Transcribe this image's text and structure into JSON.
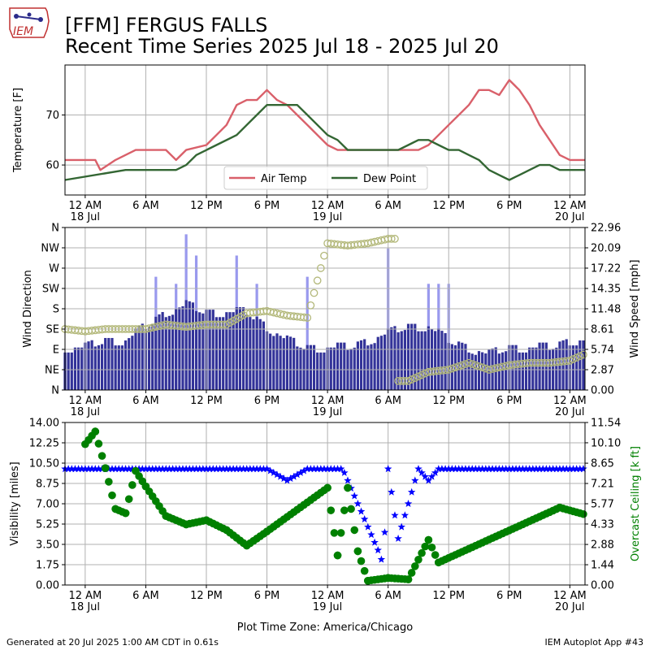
{
  "header": {
    "logo_text": "IEM",
    "title_line1": "[FFM] FERGUS FALLS",
    "title_line2": "Recent Time Series 2025 Jul 18 - 2025 Jul 20"
  },
  "footer": {
    "generated": "Generated at 20 Jul 2025 1:00 AM CDT in 0.61s",
    "app": "IEM Autoplot App #43"
  },
  "colors": {
    "air_temp": "#d9606a",
    "dew_point": "#336633",
    "wind_speed_bar": "#333399",
    "wind_gust_bar": "#9999ee",
    "wind_dir_marker": "#b3b87a",
    "visibility": "#0000ff",
    "ceiling": "#008000",
    "grid": "#b0b0b0"
  },
  "time_axis": {
    "start": "2025-07-17 22:00",
    "end": "2025-07-20 01:30",
    "ticks": [
      {
        "t": "2025-07-18 00:00",
        "label": "12 AM",
        "sub": "18 Jul"
      },
      {
        "t": "2025-07-18 06:00",
        "label": "6 AM",
        "sub": ""
      },
      {
        "t": "2025-07-18 12:00",
        "label": "12 PM",
        "sub": ""
      },
      {
        "t": "2025-07-18 18:00",
        "label": "6 PM",
        "sub": ""
      },
      {
        "t": "2025-07-19 00:00",
        "label": "12 AM",
        "sub": "19 Jul"
      },
      {
        "t": "2025-07-19 06:00",
        "label": "6 AM",
        "sub": ""
      },
      {
        "t": "2025-07-19 12:00",
        "label": "12 PM",
        "sub": ""
      },
      {
        "t": "2025-07-19 18:00",
        "label": "6 PM",
        "sub": ""
      },
      {
        "t": "2025-07-20 00:00",
        "label": "12 AM",
        "sub": "20 Jul"
      }
    ],
    "xlabel": "Plot Time Zone: America/Chicago"
  },
  "chart_data": [
    {
      "type": "line",
      "ylabel": "Temperature [F]",
      "ylim": [
        54,
        80
      ],
      "yticks": [
        60,
        70
      ],
      "legend_position": "lower-center",
      "grid": true,
      "series": [
        {
          "name": "Air Temp",
          "points": [
            [
              "2025-07-17 22:00",
              61
            ],
            [
              "2025-07-18 01:00",
              61
            ],
            [
              "2025-07-18 01:30",
              59
            ],
            [
              "2025-07-18 03:00",
              61
            ],
            [
              "2025-07-18 05:00",
              63
            ],
            [
              "2025-07-18 08:00",
              63
            ],
            [
              "2025-07-18 09:00",
              61
            ],
            [
              "2025-07-18 10:00",
              63
            ],
            [
              "2025-07-18 12:00",
              64
            ],
            [
              "2025-07-18 13:00",
              66
            ],
            [
              "2025-07-18 14:00",
              68
            ],
            [
              "2025-07-18 15:00",
              72
            ],
            [
              "2025-07-18 16:00",
              73
            ],
            [
              "2025-07-18 17:00",
              73
            ],
            [
              "2025-07-18 18:00",
              75
            ],
            [
              "2025-07-18 19:00",
              73
            ],
            [
              "2025-07-18 20:00",
              72
            ],
            [
              "2025-07-18 21:00",
              70
            ],
            [
              "2025-07-18 22:00",
              68
            ],
            [
              "2025-07-18 23:00",
              66
            ],
            [
              "2025-07-19 00:00",
              64
            ],
            [
              "2025-07-19 01:00",
              63
            ],
            [
              "2025-07-19 06:00",
              63
            ],
            [
              "2025-07-19 09:00",
              63
            ],
            [
              "2025-07-19 10:00",
              64
            ],
            [
              "2025-07-19 11:00",
              66
            ],
            [
              "2025-07-19 12:00",
              68
            ],
            [
              "2025-07-19 13:00",
              70
            ],
            [
              "2025-07-19 14:00",
              72
            ],
            [
              "2025-07-19 15:00",
              75
            ],
            [
              "2025-07-19 16:00",
              75
            ],
            [
              "2025-07-19 17:00",
              74
            ],
            [
              "2025-07-19 18:00",
              77
            ],
            [
              "2025-07-19 19:00",
              75
            ],
            [
              "2025-07-19 20:00",
              72
            ],
            [
              "2025-07-19 21:00",
              68
            ],
            [
              "2025-07-19 22:00",
              65
            ],
            [
              "2025-07-19 23:00",
              62
            ],
            [
              "2025-07-20 00:00",
              61
            ],
            [
              "2025-07-20 01:30",
              61
            ]
          ]
        },
        {
          "name": "Dew Point",
          "points": [
            [
              "2025-07-17 22:00",
              57
            ],
            [
              "2025-07-18 04:00",
              59
            ],
            [
              "2025-07-18 09:00",
              59
            ],
            [
              "2025-07-18 10:00",
              60
            ],
            [
              "2025-07-18 11:00",
              62
            ],
            [
              "2025-07-18 13:00",
              64
            ],
            [
              "2025-07-18 15:00",
              66
            ],
            [
              "2025-07-18 16:00",
              68
            ],
            [
              "2025-07-18 17:00",
              70
            ],
            [
              "2025-07-18 18:00",
              72
            ],
            [
              "2025-07-18 21:00",
              72
            ],
            [
              "2025-07-18 22:00",
              70
            ],
            [
              "2025-07-18 23:00",
              68
            ],
            [
              "2025-07-19 00:00",
              66
            ],
            [
              "2025-07-19 01:00",
              65
            ],
            [
              "2025-07-19 02:00",
              63
            ],
            [
              "2025-07-19 06:00",
              63
            ],
            [
              "2025-07-19 07:00",
              63
            ],
            [
              "2025-07-19 08:00",
              64
            ],
            [
              "2025-07-19 09:00",
              65
            ],
            [
              "2025-07-19 10:00",
              65
            ],
            [
              "2025-07-19 11:00",
              64
            ],
            [
              "2025-07-19 12:00",
              63
            ],
            [
              "2025-07-19 13:00",
              63
            ],
            [
              "2025-07-19 14:00",
              62
            ],
            [
              "2025-07-19 15:00",
              61
            ],
            [
              "2025-07-19 16:00",
              59
            ],
            [
              "2025-07-19 17:00",
              58
            ],
            [
              "2025-07-19 18:00",
              57
            ],
            [
              "2025-07-19 19:00",
              58
            ],
            [
              "2025-07-19 20:00",
              59
            ],
            [
              "2025-07-19 21:00",
              60
            ],
            [
              "2025-07-19 22:00",
              60
            ],
            [
              "2025-07-19 23:00",
              59
            ],
            [
              "2025-07-20 00:00",
              59
            ],
            [
              "2025-07-20 01:30",
              59
            ]
          ]
        }
      ]
    },
    {
      "type": "bar",
      "ylabel": "Wind Direction",
      "y2label": "Wind Speed [mph]",
      "ylim": [
        0,
        360
      ],
      "y2lim": [
        0,
        22.96
      ],
      "dir_ticks": [
        "N",
        "NE",
        "E",
        "SE",
        "S",
        "SW",
        "W",
        "NW",
        "N"
      ],
      "speed_ticks": [
        0.0,
        2.87,
        5.74,
        8.61,
        11.48,
        14.35,
        17.22,
        20.09,
        22.96
      ],
      "grid": true,
      "series": [
        {
          "name": "Wind Speed",
          "points": [
            [
              "2025-07-17 22:00",
              6
            ],
            [
              "2025-07-18 00:00",
              6
            ],
            [
              "2025-07-18 02:00",
              7
            ],
            [
              "2025-07-18 04:00",
              7
            ],
            [
              "2025-07-18 06:00",
              9
            ],
            [
              "2025-07-18 08:00",
              11
            ],
            [
              "2025-07-18 10:00",
              12
            ],
            [
              "2025-07-18 12:00",
              11
            ],
            [
              "2025-07-18 14:00",
              11
            ],
            [
              "2025-07-18 16:00",
              11
            ],
            [
              "2025-07-18 18:00",
              9
            ],
            [
              "2025-07-18 20:00",
              7
            ],
            [
              "2025-07-18 22:00",
              6
            ],
            [
              "2025-07-19 00:00",
              6
            ],
            [
              "2025-07-19 02:00",
              6
            ],
            [
              "2025-07-19 04:00",
              7
            ],
            [
              "2025-07-19 06:00",
              8
            ],
            [
              "2025-07-19 08:00",
              9
            ],
            [
              "2025-07-19 10:00",
              9
            ],
            [
              "2025-07-19 12:00",
              7
            ],
            [
              "2025-07-19 14:00",
              6
            ],
            [
              "2025-07-19 16:00",
              5
            ],
            [
              "2025-07-19 18:00",
              6
            ],
            [
              "2025-07-19 20:00",
              6
            ],
            [
              "2025-07-19 22:00",
              6
            ],
            [
              "2025-07-20 00:00",
              7
            ],
            [
              "2025-07-20 01:30",
              7
            ]
          ]
        },
        {
          "name": "Wind Gust",
          "points": [
            [
              "2025-07-18 07:00",
              16
            ],
            [
              "2025-07-18 09:00",
              15
            ],
            [
              "2025-07-18 10:00",
              22
            ],
            [
              "2025-07-18 11:00",
              19
            ],
            [
              "2025-07-18 15:00",
              19
            ],
            [
              "2025-07-18 17:00",
              15
            ],
            [
              "2025-07-18 22:00",
              16
            ],
            [
              "2025-07-19 06:00",
              20
            ],
            [
              "2025-07-19 10:00",
              15
            ],
            [
              "2025-07-19 11:00",
              15
            ],
            [
              "2025-07-19 12:00",
              15
            ]
          ]
        },
        {
          "name": "Wind Direction",
          "points": [
            [
              "2025-07-17 22:00",
              135
            ],
            [
              "2025-07-18 00:00",
              130
            ],
            [
              "2025-07-18 02:00",
              135
            ],
            [
              "2025-07-18 04:00",
              135
            ],
            [
              "2025-07-18 06:00",
              135
            ],
            [
              "2025-07-18 08:00",
              145
            ],
            [
              "2025-07-18 10:00",
              140
            ],
            [
              "2025-07-18 12:00",
              145
            ],
            [
              "2025-07-18 14:00",
              145
            ],
            [
              "2025-07-18 16:00",
              170
            ],
            [
              "2025-07-18 18:00",
              175
            ],
            [
              "2025-07-18 20:00",
              165
            ],
            [
              "2025-07-18 22:00",
              160
            ],
            [
              "2025-07-19 00:00",
              325
            ],
            [
              "2025-07-19 02:00",
              320
            ],
            [
              "2025-07-19 04:00",
              325
            ],
            [
              "2025-07-19 06:00",
              335
            ],
            [
              "2025-07-19 08:00",
              20
            ],
            [
              "2025-07-19 10:00",
              40
            ],
            [
              "2025-07-19 12:00",
              45
            ],
            [
              "2025-07-19 14:00",
              60
            ],
            [
              "2025-07-19 16:00",
              45
            ],
            [
              "2025-07-19 18:00",
              55
            ],
            [
              "2025-07-19 20:00",
              60
            ],
            [
              "2025-07-19 22:00",
              60
            ],
            [
              "2025-07-20 00:00",
              65
            ],
            [
              "2025-07-20 01:30",
              80
            ]
          ]
        }
      ]
    },
    {
      "type": "scatter",
      "ylabel": "Visibility [miles]",
      "y2label": "Overcast Ceiling [k ft]",
      "ylim": [
        0,
        14
      ],
      "y2lim": [
        0,
        11.54
      ],
      "yticks": [
        0.0,
        1.75,
        3.5,
        5.25,
        7.0,
        8.75,
        10.5,
        12.25,
        14.0
      ],
      "y2ticks": [
        0.0,
        1.44,
        2.88,
        4.33,
        5.77,
        7.21,
        8.65,
        10.1,
        11.54
      ],
      "grid": true,
      "series": [
        {
          "name": "Visibility",
          "points": [
            [
              "2025-07-17 22:00",
              10
            ],
            [
              "2025-07-18 18:00",
              10
            ],
            [
              "2025-07-18 20:00",
              9
            ],
            [
              "2025-07-18 22:00",
              10
            ],
            [
              "2025-07-19 00:00",
              10
            ],
            [
              "2025-07-19 01:30",
              10
            ],
            [
              "2025-07-19 02:00",
              9
            ],
            [
              "2025-07-19 03:00",
              7
            ],
            [
              "2025-07-19 04:00",
              5
            ],
            [
              "2025-07-19 05:00",
              3
            ],
            [
              "2025-07-19 05:30",
              1.8
            ],
            [
              "2025-07-19 06:00",
              10
            ],
            [
              "2025-07-19 07:00",
              4
            ],
            [
              "2025-07-19 08:00",
              7
            ],
            [
              "2025-07-19 09:00",
              10
            ],
            [
              "2025-07-19 10:00",
              9
            ],
            [
              "2025-07-19 11:00",
              10
            ],
            [
              "2025-07-20 01:30",
              10
            ]
          ]
        },
        {
          "name": "Overcast Ceiling",
          "points": [
            [
              "2025-07-18 00:00",
              10.0
            ],
            [
              "2025-07-18 01:00",
              10.9
            ],
            [
              "2025-07-18 02:00",
              8.3
            ],
            [
              "2025-07-18 03:00",
              5.4
            ],
            [
              "2025-07-18 04:00",
              5.1
            ],
            [
              "2025-07-18 05:00",
              8.1
            ],
            [
              "2025-07-18 06:00",
              7.0
            ],
            [
              "2025-07-18 08:00",
              4.9
            ],
            [
              "2025-07-18 10:00",
              4.3
            ],
            [
              "2025-07-18 12:00",
              4.6
            ],
            [
              "2025-07-18 14:00",
              3.9
            ],
            [
              "2025-07-18 16:00",
              2.8
            ],
            [
              "2025-07-18 18:00",
              3.8
            ],
            [
              "2025-07-19 00:00",
              6.9
            ],
            [
              "2025-07-19 01:00",
              2.1
            ],
            [
              "2025-07-19 02:00",
              6.9
            ],
            [
              "2025-07-19 03:00",
              2.4
            ],
            [
              "2025-07-19 04:00",
              0.3
            ],
            [
              "2025-07-19 06:00",
              0.5
            ],
            [
              "2025-07-19 08:00",
              0.4
            ],
            [
              "2025-07-19 10:00",
              3.2
            ],
            [
              "2025-07-19 11:00",
              1.6
            ],
            [
              "2025-07-19 23:00",
              5.5
            ],
            [
              "2025-07-20 01:30",
              5.0
            ]
          ]
        }
      ]
    }
  ]
}
